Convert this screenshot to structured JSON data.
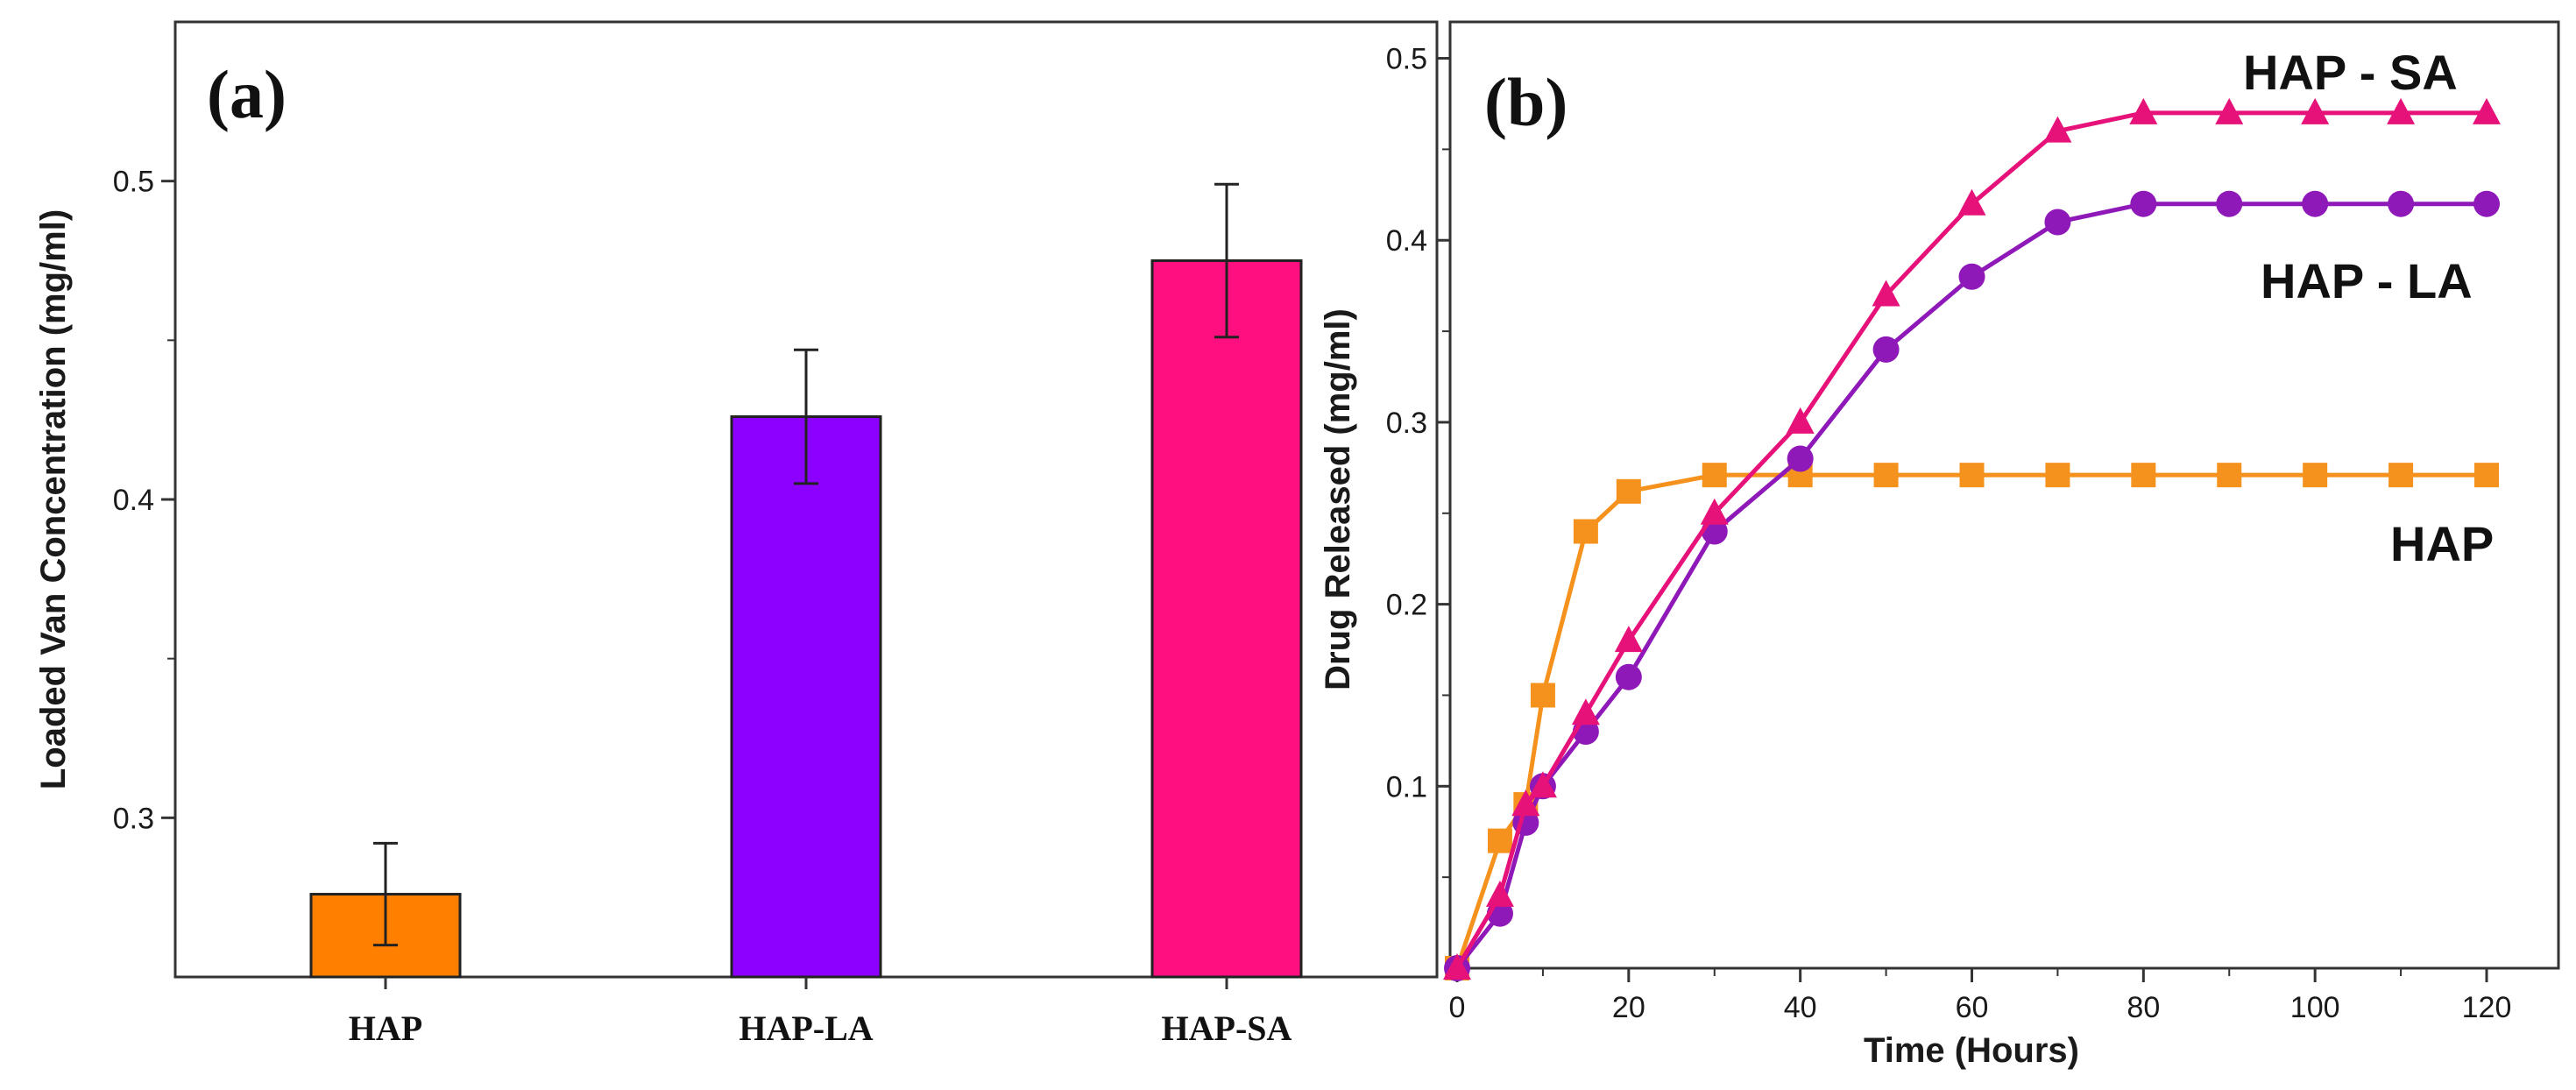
{
  "chart_data": [
    {
      "type": "bar",
      "panel_label": "(a)",
      "categories": [
        "HAP",
        "HAP-LA",
        "HAP-SA"
      ],
      "values": [
        0.276,
        0.426,
        0.475
      ],
      "errors": [
        0.016,
        0.021,
        0.024
      ],
      "colors": [
        "#ff7f00",
        "#8b00ff",
        "#ff0f80"
      ],
      "xlabel": "",
      "ylabel": "Loaded Van Concentration (mg/ml)",
      "ylim": [
        0.25,
        0.55
      ],
      "yticks": [
        0.3,
        0.4,
        0.5
      ],
      "ytick_labels": [
        "0.3",
        "0.4",
        "0.5"
      ]
    },
    {
      "type": "line",
      "panel_label": "(b)",
      "xlabel": "Time (Hours)",
      "ylabel": "Drug Released (mg/ml)",
      "xlim": [
        0,
        125
      ],
      "ylim": [
        0,
        0.52
      ],
      "xticks": [
        0,
        20,
        40,
        60,
        80,
        100,
        120
      ],
      "xtick_labels": [
        "0",
        "20",
        "40",
        "60",
        "80",
        "100",
        "120"
      ],
      "yticks": [
        0.1,
        0.2,
        0.3,
        0.4,
        0.5
      ],
      "ytick_labels": [
        "0.1",
        "0.2",
        "0.3",
        "0.4",
        "0.5"
      ],
      "series": [
        {
          "name": "HAP",
          "marker": "square",
          "color": "#f5921e",
          "x": [
            0,
            5,
            8,
            10,
            15,
            20,
            30,
            40,
            50,
            60,
            70,
            80,
            90,
            100,
            110,
            120
          ],
          "y": [
            0,
            0.07,
            0.09,
            0.15,
            0.24,
            0.262,
            0.271,
            0.271,
            0.271,
            0.271,
            0.271,
            0.271,
            0.271,
            0.271,
            0.271,
            0.271
          ]
        },
        {
          "name": "HAP -  LA",
          "marker": "circle",
          "color": "#8e19b8",
          "x": [
            0,
            5,
            8,
            10,
            15,
            20,
            30,
            40,
            50,
            60,
            70,
            80,
            90,
            100,
            110,
            120
          ],
          "y": [
            0,
            0.03,
            0.08,
            0.1,
            0.13,
            0.16,
            0.24,
            0.28,
            0.34,
            0.38,
            0.41,
            0.42,
            0.42,
            0.42,
            0.42,
            0.42
          ]
        },
        {
          "name": "HAP - SA",
          "marker": "triangle",
          "color": "#e6127a",
          "x": [
            0,
            5,
            8,
            10,
            15,
            20,
            30,
            40,
            50,
            60,
            70,
            80,
            90,
            100,
            110,
            120
          ],
          "y": [
            0,
            0.04,
            0.09,
            0.1,
            0.14,
            0.18,
            0.25,
            0.3,
            0.37,
            0.42,
            0.46,
            0.47,
            0.47,
            0.47,
            0.47,
            0.47
          ]
        }
      ]
    }
  ]
}
